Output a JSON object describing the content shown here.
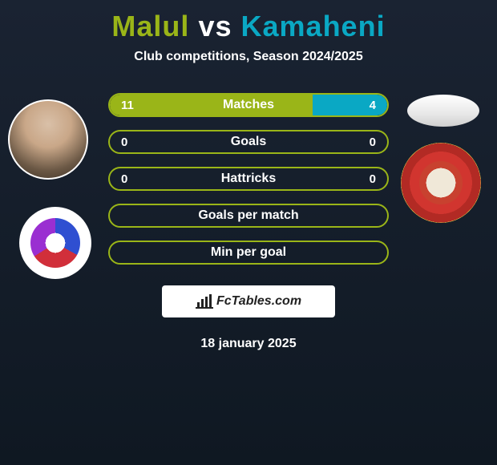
{
  "title": {
    "player1": "Malul",
    "vs": "vs",
    "player2": "Kamaheni",
    "player1_color": "#9ab518",
    "vs_color": "#ffffff",
    "player2_color": "#0aa8c4"
  },
  "subtitle": {
    "text": "Club competitions, Season 2024/2025",
    "color": "#ffffff"
  },
  "bars": {
    "track_border_color": "#9ab518",
    "track_bg": "transparent",
    "label_color": "#ffffff",
    "value_color": "#ffffff",
    "left_fill_color": "#9ab518",
    "right_fill_color": "#0aa8c4",
    "rows": [
      {
        "label": "Matches",
        "left_value": "11",
        "right_value": "4",
        "left_pct": 73,
        "right_pct": 27,
        "show_values": true
      },
      {
        "label": "Goals",
        "left_value": "0",
        "right_value": "0",
        "left_pct": 0,
        "right_pct": 0,
        "show_values": true
      },
      {
        "label": "Hattricks",
        "left_value": "0",
        "right_value": "0",
        "left_pct": 0,
        "right_pct": 0,
        "show_values": true
      },
      {
        "label": "Goals per match",
        "left_value": "",
        "right_value": "",
        "left_pct": 0,
        "right_pct": 0,
        "show_values": false
      },
      {
        "label": "Min per goal",
        "left_value": "",
        "right_value": "",
        "left_pct": 0,
        "right_pct": 0,
        "show_values": false
      }
    ]
  },
  "footer": {
    "brand": "FcTables.com",
    "date": "18 january 2025",
    "date_color": "#ffffff"
  },
  "background": "#162230"
}
